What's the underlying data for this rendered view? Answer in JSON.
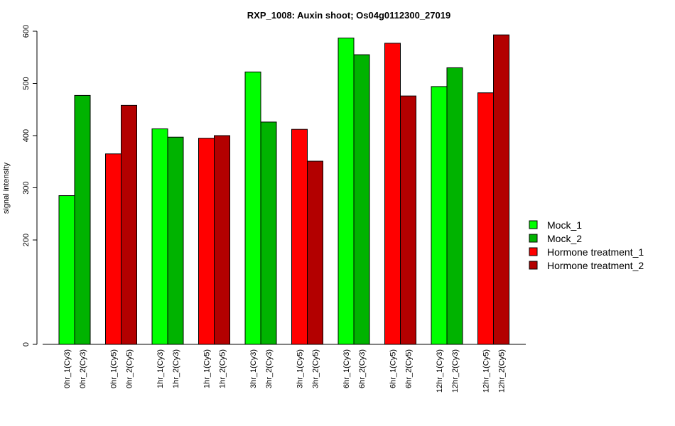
{
  "chart_data": {
    "type": "bar",
    "title": "RXP_1008: Auxin shoot; Os04g0112300_27019",
    "xlabel": "",
    "ylabel": "signal intensity",
    "ylim": [
      0,
      600
    ],
    "y_ticks": [
      0,
      200,
      300,
      400,
      500,
      600
    ],
    "legend_position": "right",
    "series": [
      {
        "name": "Mock_1",
        "color": "#00ff00"
      },
      {
        "name": "Mock_2",
        "color": "#00b300"
      },
      {
        "name": "Hormone treatment_1",
        "color": "#ff0000"
      },
      {
        "name": "Hormone treatment_2",
        "color": "#b30000"
      }
    ],
    "bars": [
      {
        "label": "0hr_1(Cy3)",
        "value": 285,
        "series": 0
      },
      {
        "label": "0hr_2(Cy3)",
        "value": 477,
        "series": 1
      },
      {
        "label": "0hr_1(Cy5)",
        "value": 365,
        "series": 2
      },
      {
        "label": "0hr_2(Cy5)",
        "value": 458,
        "series": 3
      },
      {
        "label": "1hr_1(Cy3)",
        "value": 413,
        "series": 0
      },
      {
        "label": "1hr_2(Cy3)",
        "value": 397,
        "series": 1
      },
      {
        "label": "1hr_1(Cy5)",
        "value": 395,
        "series": 2
      },
      {
        "label": "1hr_2(Cy5)",
        "value": 400,
        "series": 3
      },
      {
        "label": "3hr_1(Cy3)",
        "value": 522,
        "series": 0
      },
      {
        "label": "3hr_2(Cy3)",
        "value": 426,
        "series": 1
      },
      {
        "label": "3hr_1(Cy5)",
        "value": 412,
        "series": 2
      },
      {
        "label": "3hr_2(Cy5)",
        "value": 351,
        "series": 3
      },
      {
        "label": "6hr_1(Cy3)",
        "value": 587,
        "series": 0
      },
      {
        "label": "6hr_2(Cy3)",
        "value": 555,
        "series": 1
      },
      {
        "label": "6hr_1(Cy5)",
        "value": 577,
        "series": 2
      },
      {
        "label": "6hr_2(Cy5)",
        "value": 476,
        "series": 3
      },
      {
        "label": "12hr_1(Cy3)",
        "value": 494,
        "series": 0
      },
      {
        "label": "12hr_2(Cy3)",
        "value": 530,
        "series": 1
      },
      {
        "label": "12hr_1(Cy5)",
        "value": 482,
        "series": 2
      },
      {
        "label": "12hr_2(Cy5)",
        "value": 593,
        "series": 3
      }
    ]
  }
}
